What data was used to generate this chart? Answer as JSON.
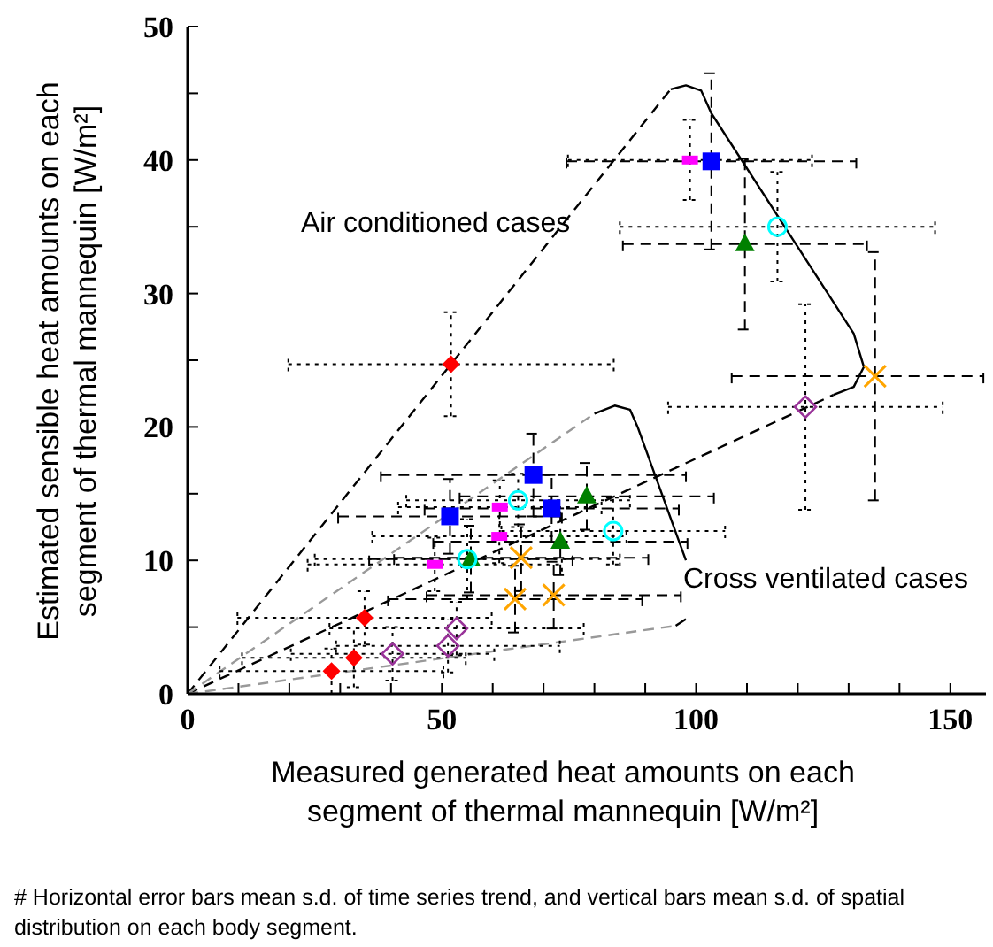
{
  "chart_data": {
    "type": "scatter",
    "xlabel": "Measured generated heat amounts on each segment of thermal mannequin [W/m²]",
    "ylabel": "Estimated sensible heat amounts on each segment of thermal mannequin [W/m²]",
    "xlim": [
      0,
      157
    ],
    "xticks": [
      0,
      {
        "value": 10,
        "label": null
      },
      {
        "value": 20,
        "label": null
      },
      {
        "value": 30,
        "label": null
      },
      {
        "value": 40,
        "label": null
      },
      50,
      {
        "value": 60,
        "label": null
      },
      {
        "value": 70,
        "label": null
      },
      {
        "value": 80,
        "label": null
      },
      {
        "value": 90,
        "label": null
      },
      100,
      {
        "value": 110,
        "label": null
      },
      {
        "value": 120,
        "label": null
      },
      {
        "value": 130,
        "label": null
      },
      {
        "value": 140,
        "label": null
      },
      150
    ],
    "ylim": [
      0,
      50
    ],
    "yticks": [
      0,
      {
        "value": 5,
        "label": null
      },
      10,
      {
        "value": 15,
        "label": null
      },
      20,
      {
        "value": 25,
        "label": null
      },
      30,
      {
        "value": 35,
        "label": null
      },
      40,
      {
        "value": 45,
        "label": null
      },
      50
    ],
    "grid": false,
    "legend": false,
    "annotations": [
      "Air conditioned cases",
      "Cross ventilated cases",
      "# Horizontal error bars mean s.d. of time series trend, and vertical bars mean s.d. of spatial distribution on each body segment."
    ],
    "series": [
      {
        "type": "line",
        "color": "#000000",
        "line_style": "dashed",
        "x": [
          0,
          95
        ],
        "values": [
          0,
          45.3
        ]
      },
      {
        "type": "line",
        "color": "#000000",
        "line_style": "dashed",
        "x": [
          0,
          127
        ],
        "values": [
          0,
          22.4
        ]
      },
      {
        "type": "line",
        "color": "#000000",
        "line_style": "solid",
        "x": [
          95,
          98,
          101,
          103,
          131,
          133,
          131,
          127
        ],
        "values": [
          45.3,
          45.6,
          45.2,
          43.5,
          27,
          24.5,
          23,
          22.4
        ]
      },
      {
        "type": "line",
        "color": "#999999",
        "line_style": "dashed",
        "x": [
          0,
          80
        ],
        "values": [
          0,
          21
        ]
      },
      {
        "type": "line",
        "color": "#999999",
        "line_style": "dashed",
        "x": [
          0,
          96
        ],
        "values": [
          0,
          5.1
        ]
      },
      {
        "type": "line",
        "color": "#000000",
        "line_style": "solid",
        "x": [
          80,
          84,
          87,
          88.5,
          98
        ],
        "values": [
          21,
          21.6,
          21.3,
          20,
          10
        ]
      },
      {
        "type": "line",
        "color": "#000000",
        "line_style": "solid",
        "x": [
          98,
          96
        ],
        "values": [
          5.6,
          5.1
        ]
      },
      {
        "color": "#ff0000",
        "marker": "diamond",
        "line_style": "dotted",
        "x": [
          51.8,
          34.8,
          32.7,
          28.3
        ],
        "values": [
          24.7,
          5.7,
          2.7,
          1.7
        ],
        "xerrors": [
          32,
          25,
          22,
          22
        ],
        "errors": [
          3.9,
          2,
          2.2,
          1.7
        ]
      },
      {
        "color": "#0000ff",
        "marker": "square",
        "line_style": "dashed",
        "x": [
          103,
          68,
          51.6,
          71.6
        ],
        "values": [
          39.9,
          16.4,
          13.3,
          13.9
        ],
        "xerrors": [
          28.5,
          30,
          22,
          25
        ],
        "errors": [
          6.6,
          3.1,
          2.8,
          2.5
        ]
      },
      {
        "color": "#ff00ff",
        "marker": "square",
        "line_style": "dotted",
        "x": [
          98.8,
          61.4,
          61.3,
          48.6
        ],
        "values": [
          40,
          14,
          11.8,
          9.7
        ],
        "xerrors": [
          24,
          20,
          25,
          25
        ],
        "errors": [
          3,
          2,
          2,
          2
        ]
      },
      {
        "color": "#008000",
        "marker": "triangle",
        "line_style": "dashed",
        "x": [
          109.6,
          78.5,
          73.3,
          55.7
        ],
        "values": [
          33.7,
          14.8,
          11.4,
          10.1
        ],
        "xerrors": [
          24,
          25,
          25,
          20
        ],
        "errors": [
          6.4,
          2.5,
          2.5,
          2.5
        ]
      },
      {
        "color": "#00ffff",
        "marker": "circle_open",
        "line_style": "dotted",
        "x": [
          116,
          65,
          83.7,
          55
        ],
        "values": [
          35,
          14.5,
          12.2,
          10.1
        ],
        "xerrors": [
          31,
          22,
          22,
          30
        ],
        "errors": [
          4.1,
          2,
          2.5,
          3
        ]
      },
      {
        "color": "#ffa500",
        "marker": "cross",
        "line_style": "dashed",
        "x": [
          135.2,
          65.6,
          64.4,
          72
        ],
        "values": [
          23.8,
          10.2,
          7.1,
          7.4
        ],
        "xerrors": [
          [
            107,
            156.5
          ],
          25,
          25,
          25
        ],
        "errors": [
          9.3,
          2.5,
          2.5,
          2.5
        ]
      },
      {
        "color": "#993399",
        "marker": "diamond_open",
        "line_style": "dotted",
        "x": [
          121.5,
          52.9,
          51.2,
          40.3
        ],
        "values": [
          21.5,
          4.9,
          3.6,
          3.0
        ],
        "xerrors": [
          27,
          25,
          22,
          20
        ],
        "errors": [
          7.7,
          2,
          2,
          2
        ]
      }
    ]
  }
}
